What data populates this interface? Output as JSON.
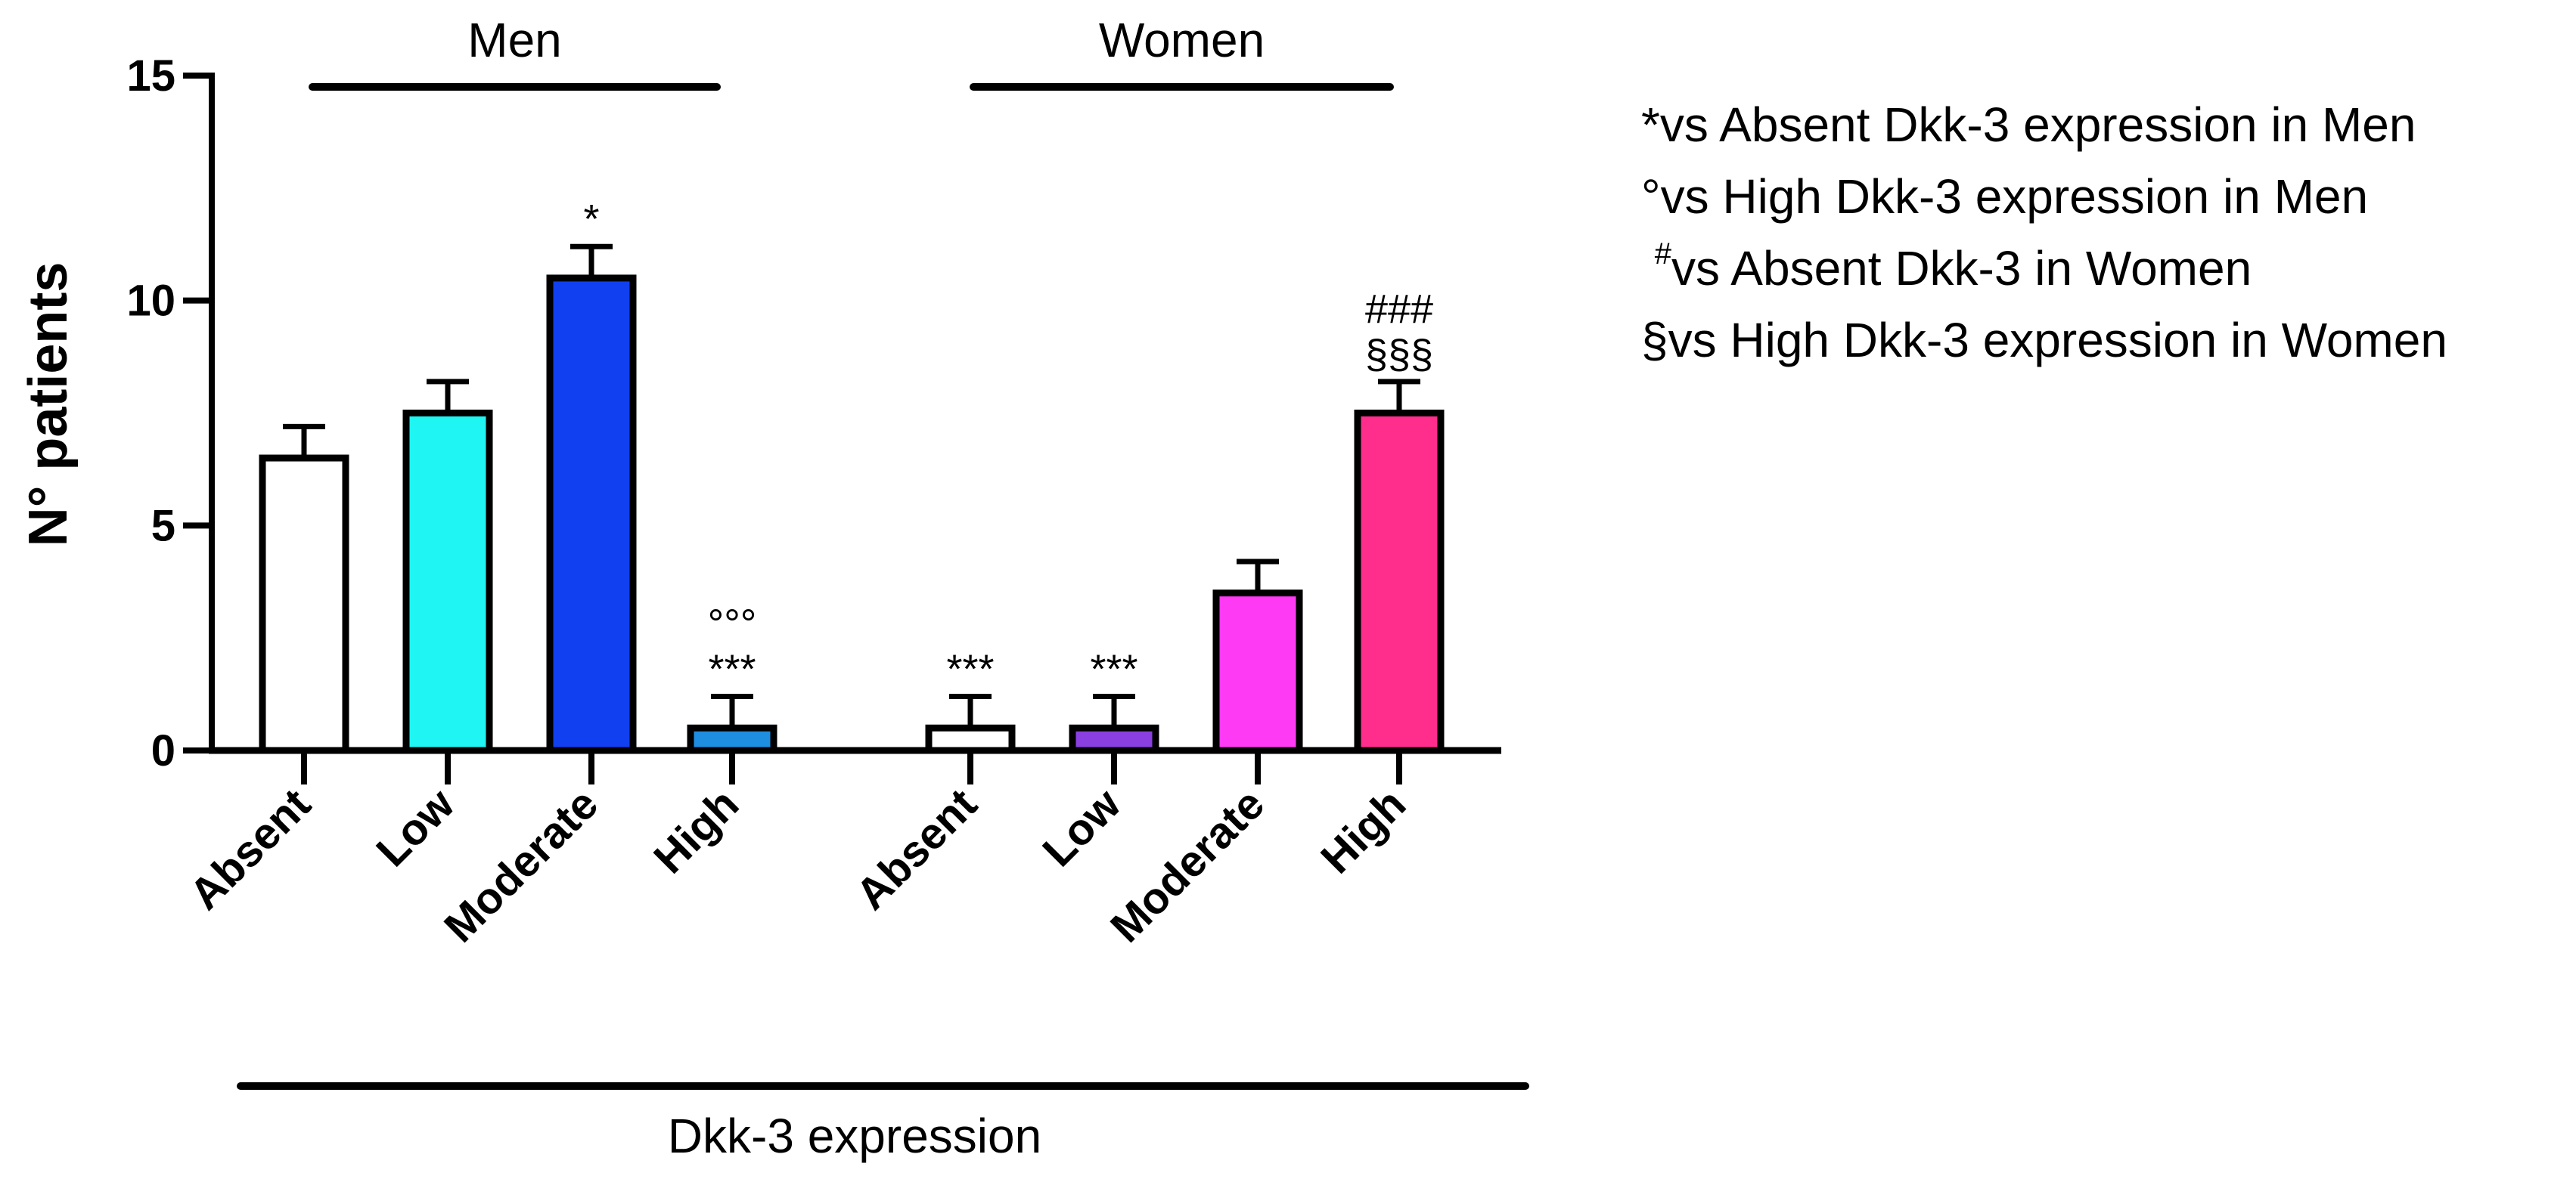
{
  "chart_data": {
    "type": "bar",
    "title": "",
    "xlabel": "Dkk-3 expression",
    "ylabel": "N° patients",
    "ylim": [
      0,
      15
    ],
    "yticks": [
      "0",
      "5",
      "10",
      "15"
    ],
    "grid": false,
    "groups": [
      {
        "name": "Men",
        "bars": [
          {
            "category": "Absent",
            "value": 6.5,
            "error": 0.7,
            "color": "#ffffff",
            "annotation": []
          },
          {
            "category": "Low",
            "value": 7.5,
            "error": 0.7,
            "color": "#1ff5f2",
            "annotation": []
          },
          {
            "category": "Moderate",
            "value": 10.5,
            "error": 0.7,
            "color": "#1040f0",
            "annotation": [
              "*"
            ]
          },
          {
            "category": "High",
            "value": 0.5,
            "error": 0.7,
            "color": "#1e8ee0",
            "annotation": [
              "°°°",
              "***"
            ]
          }
        ]
      },
      {
        "name": "Women",
        "bars": [
          {
            "category": "Absent",
            "value": 0.5,
            "error": 0.7,
            "color": "#ffffff",
            "annotation": [
              "***"
            ]
          },
          {
            "category": "Low",
            "value": 0.5,
            "error": 0.7,
            "color": "#8a3fe0",
            "annotation": [
              "***"
            ]
          },
          {
            "category": "Moderate",
            "value": 3.5,
            "error": 0.7,
            "color": "#ff3af5",
            "annotation": []
          },
          {
            "category": "High",
            "value": 7.5,
            "error": 0.7,
            "color": "#ff2d8c",
            "annotation": [
              "###",
              "§§§"
            ]
          }
        ]
      }
    ]
  },
  "legend": {
    "items": [
      {
        "symbol": "*",
        "text": "vs Absent Dkk-3 expression in Men",
        "superscript": false
      },
      {
        "symbol": " °",
        "text": "vs High Dkk-3 expression in Men",
        "superscript": false
      },
      {
        "symbol": "#",
        "text": "vs Absent Dkk-3 in Women",
        "superscript": true
      },
      {
        "symbol": " §",
        "text": "vs High Dkk-3 expression in Women",
        "superscript": false
      }
    ]
  }
}
